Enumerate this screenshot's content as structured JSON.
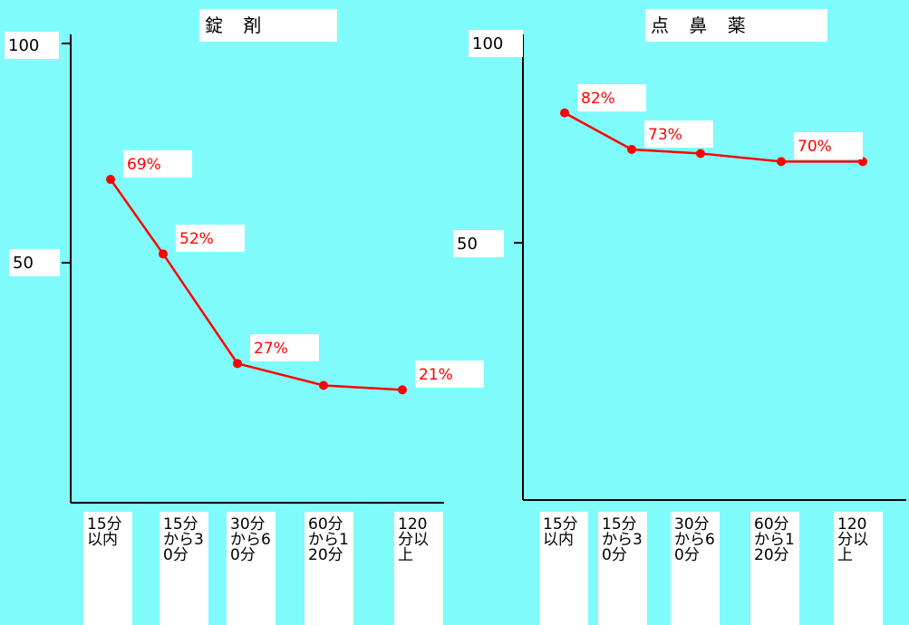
{
  "chart_data": [
    {
      "type": "line",
      "title": "錠 剤",
      "categories": [
        "15分以内",
        "15分から30分",
        "30分から60分",
        "60分から120分",
        "120分以上"
      ],
      "values": [
        69,
        52,
        27,
        22,
        21
      ],
      "value_labels": [
        "69%",
        "52%",
        "27%",
        null,
        "21%"
      ],
      "color": "#ff0000",
      "ylim": [
        0,
        100
      ],
      "yticks": [
        50,
        100
      ]
    },
    {
      "type": "line",
      "title": "点 鼻 薬",
      "categories": [
        "15分以内",
        "15分から30分",
        "30分から60分",
        "60分から120分",
        "120分以上"
      ],
      "values": [
        82,
        73,
        72,
        70,
        70
      ],
      "value_labels": [
        "82%",
        "73%",
        null,
        "70%",
        null
      ],
      "color": "#ff0000",
      "ylim": [
        0,
        100
      ],
      "yticks": [
        50,
        100
      ]
    }
  ]
}
